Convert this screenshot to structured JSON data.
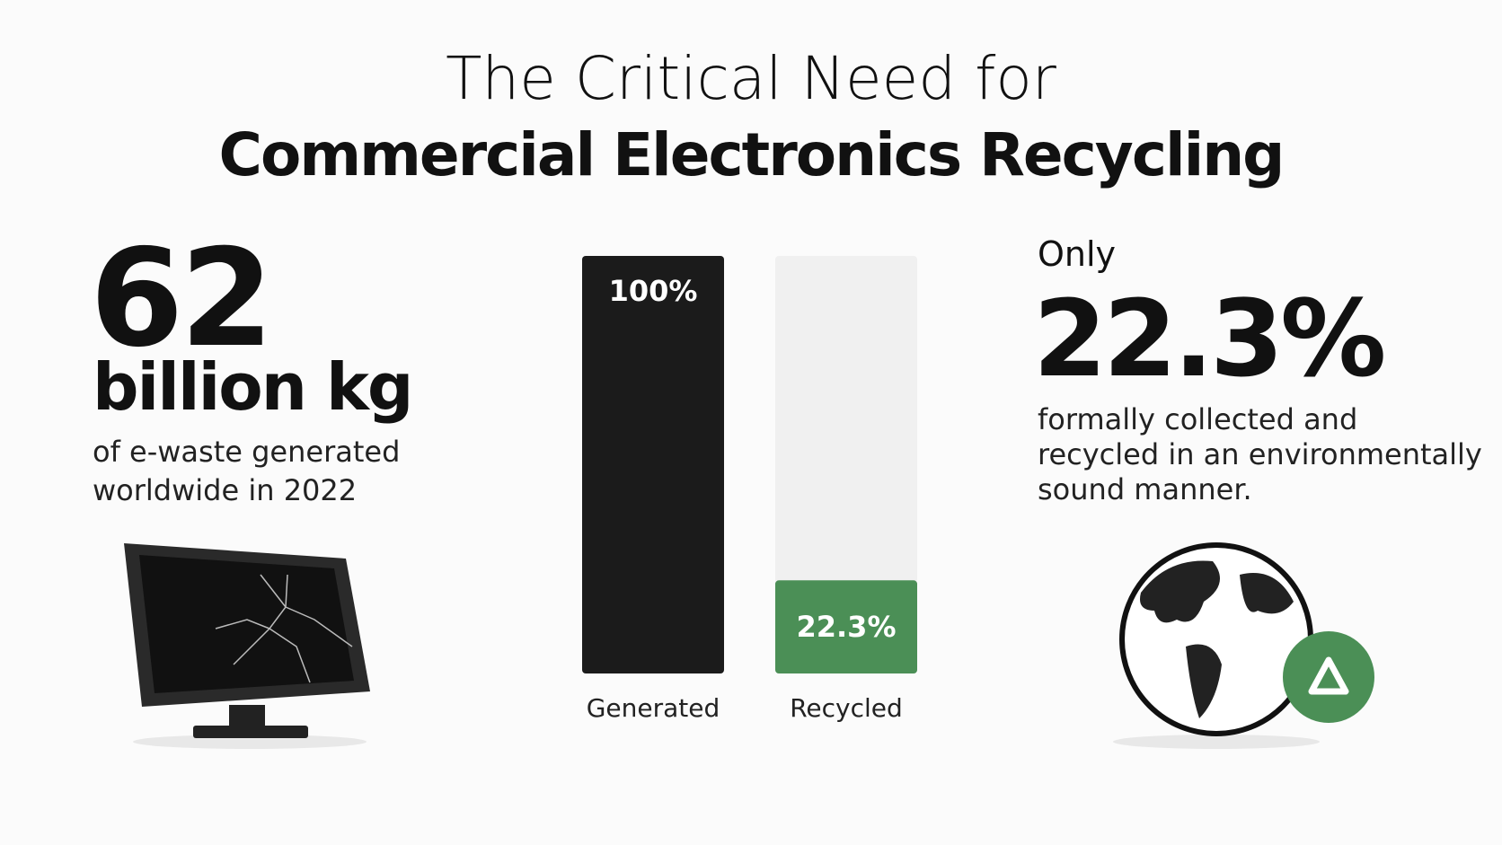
{
  "chart_data": {
    "type": "bar",
    "title": "The Critical Need for",
    "subtitle": "Commercial Electronics Recycling",
    "categories": [
      "Generated",
      "Recycled"
    ],
    "values": [
      100,
      22.3
    ],
    "value_labels": [
      "100%",
      "22.3%"
    ],
    "colors": [
      "#1b1b1b",
      "#4b8f56"
    ],
    "ylim": [
      0,
      100
    ]
  },
  "left_stat": {
    "number": "62",
    "unit": "billion kg",
    "lines": [
      "of e-waste generated",
      "worldwide in 2022"
    ]
  },
  "right_stat": {
    "prefix": "Only",
    "number": "22.3%",
    "lines": [
      "formally collected and",
      "recycled in an environmentally",
      "sound manner."
    ]
  }
}
